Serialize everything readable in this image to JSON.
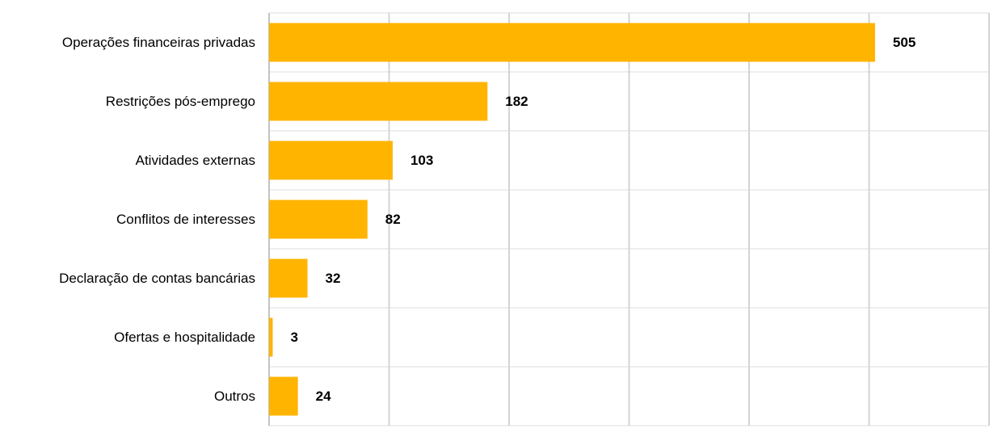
{
  "chart_data": {
    "type": "bar",
    "orientation": "horizontal",
    "categories": [
      "Operações financeiras privadas",
      "Restrições pós-emprego",
      "Atividades externas",
      "Conflitos de interesses",
      "Declaração de contas bancárias",
      "Ofertas e hospitalidade",
      "Outros"
    ],
    "values": [
      505,
      182,
      103,
      82,
      32,
      3,
      24
    ],
    "color": "#ffb400",
    "xlim": [
      0,
      600
    ],
    "xticks": [
      0,
      100,
      200,
      300,
      400,
      500,
      600
    ],
    "grid": true
  }
}
